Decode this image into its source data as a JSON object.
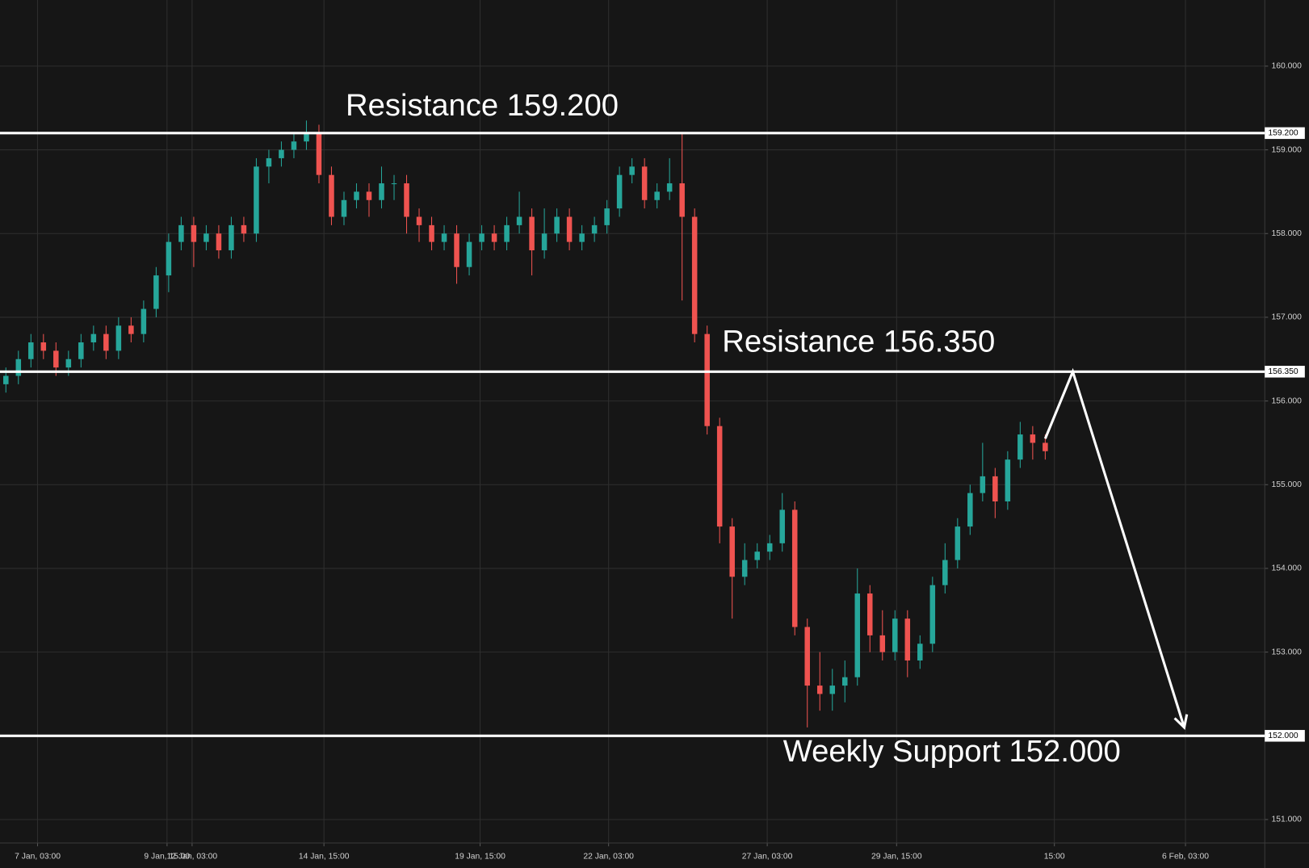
{
  "chart_data": {
    "type": "candlestick",
    "up_color": "#26a69a",
    "down_color": "#ef5350",
    "grid": true,
    "xlim": [
      -0.47,
      100.53
    ],
    "ylim": [
      150.72,
      160.79
    ],
    "xticks": [
      {
        "value": 2.53,
        "label": "7 Jan, 03:00"
      },
      {
        "value": 12.87,
        "label": "9 Jan, 15:00"
      },
      {
        "value": 14.87,
        "label": "12 Jan, 03:00"
      },
      {
        "value": 25.4,
        "label": "14 Jan, 15:00"
      },
      {
        "value": 37.87,
        "label": "19 Jan, 15:00"
      },
      {
        "value": 48.13,
        "label": "22 Jan, 03:00"
      },
      {
        "value": 60.8,
        "label": "27 Jan, 03:00"
      },
      {
        "value": 71.13,
        "label": "29 Jan, 15:00"
      },
      {
        "value": 83.73,
        "label": "15:00"
      },
      {
        "value": 94.2,
        "label": "6 Feb, 03:00"
      }
    ],
    "yticks": [
      {
        "value": 151,
        "label": "151.000"
      },
      {
        "value": 152,
        "label": "152.000"
      },
      {
        "value": 153,
        "label": "153.000"
      },
      {
        "value": 154,
        "label": "154.000"
      },
      {
        "value": 155,
        "label": "155.000"
      },
      {
        "value": 156,
        "label": "156.000"
      },
      {
        "value": 157,
        "label": "157.000"
      },
      {
        "value": 158,
        "label": "158.000"
      },
      {
        "value": 159,
        "label": "159.000"
      },
      {
        "value": 160,
        "label": "160.000"
      }
    ],
    "open": [
      156.2,
      156.3,
      156.5,
      156.7,
      156.6,
      156.4,
      156.5,
      156.7,
      156.8,
      156.6,
      156.9,
      156.8,
      157.1,
      157.5,
      157.9,
      158.1,
      157.9,
      158.0,
      157.8,
      158.1,
      158.0,
      158.8,
      158.9,
      159.0,
      159.1,
      159.2,
      158.7,
      158.2,
      158.4,
      158.5,
      158.4,
      158.6,
      158.6,
      158.2,
      158.1,
      157.9,
      158.0,
      157.6,
      157.9,
      158.0,
      157.9,
      158.1,
      158.2,
      157.8,
      158.0,
      158.2,
      157.9,
      158.0,
      158.1,
      158.3,
      158.7,
      158.8,
      158.4,
      158.5,
      158.6,
      158.2,
      156.8,
      155.7,
      154.5,
      153.9,
      154.1,
      154.2,
      154.3,
      154.7,
      153.3,
      152.6,
      152.5,
      152.6,
      152.7,
      153.7,
      153.2,
      153.0,
      153.4,
      152.9,
      153.1,
      153.8,
      154.1,
      154.5,
      154.9,
      155.1,
      154.8,
      155.3,
      155.6,
      155.5
    ],
    "high": [
      156.4,
      156.6,
      156.8,
      156.8,
      156.7,
      156.6,
      156.8,
      156.9,
      156.9,
      157.0,
      157.0,
      157.2,
      157.6,
      158.0,
      158.2,
      158.2,
      158.1,
      158.1,
      158.2,
      158.2,
      158.9,
      159.0,
      159.1,
      159.2,
      159.35,
      159.3,
      158.8,
      158.5,
      158.6,
      158.6,
      158.8,
      158.7,
      158.7,
      158.3,
      158.2,
      158.1,
      158.1,
      158.0,
      158.1,
      158.1,
      158.2,
      158.5,
      158.3,
      158.3,
      158.3,
      158.3,
      158.1,
      158.2,
      158.4,
      158.8,
      158.9,
      158.9,
      158.6,
      158.9,
      159.2,
      158.3,
      156.9,
      155.8,
      154.6,
      154.3,
      154.3,
      154.4,
      154.9,
      154.8,
      153.4,
      153.0,
      152.8,
      152.9,
      154.0,
      153.8,
      153.5,
      153.5,
      153.5,
      153.2,
      153.9,
      154.3,
      154.6,
      155.0,
      155.5,
      155.2,
      155.4,
      155.75,
      155.7,
      155.6
    ],
    "low": [
      156.1,
      156.2,
      156.4,
      156.5,
      156.3,
      156.3,
      156.4,
      156.6,
      156.5,
      156.5,
      156.7,
      156.7,
      157.0,
      157.3,
      157.8,
      157.6,
      157.8,
      157.7,
      157.7,
      157.9,
      157.9,
      158.6,
      158.8,
      158.9,
      159.0,
      158.6,
      158.1,
      158.1,
      158.3,
      158.2,
      158.3,
      158.4,
      158.0,
      157.9,
      157.8,
      157.8,
      157.4,
      157.5,
      157.8,
      157.8,
      157.8,
      158.0,
      157.5,
      157.7,
      157.9,
      157.8,
      157.8,
      157.9,
      158.0,
      158.2,
      158.6,
      158.3,
      158.3,
      158.4,
      157.2,
      156.7,
      155.6,
      154.3,
      153.4,
      153.8,
      154.0,
      154.1,
      154.2,
      153.2,
      152.1,
      152.3,
      152.3,
      152.4,
      152.6,
      153.0,
      152.9,
      152.9,
      152.7,
      152.8,
      153.0,
      153.7,
      154.0,
      154.4,
      154.8,
      154.6,
      154.7,
      155.2,
      155.3,
      155.3
    ],
    "close": [
      156.3,
      156.5,
      156.7,
      156.6,
      156.4,
      156.5,
      156.7,
      156.8,
      156.6,
      156.9,
      156.8,
      157.1,
      157.5,
      157.9,
      158.1,
      157.9,
      158.0,
      157.8,
      158.1,
      158.0,
      158.8,
      158.9,
      159.0,
      159.1,
      159.2,
      158.7,
      158.2,
      158.4,
      158.5,
      158.4,
      158.6,
      158.6,
      158.2,
      158.1,
      157.9,
      158.0,
      157.6,
      157.9,
      158.0,
      157.9,
      158.1,
      158.2,
      157.8,
      158.0,
      158.2,
      157.9,
      158.0,
      158.1,
      158.3,
      158.7,
      158.8,
      158.4,
      158.5,
      158.6,
      158.2,
      156.8,
      155.7,
      154.5,
      153.9,
      154.1,
      154.2,
      154.3,
      154.7,
      153.3,
      152.6,
      152.5,
      152.6,
      152.7,
      153.7,
      153.2,
      153.0,
      153.4,
      152.9,
      153.1,
      153.8,
      154.1,
      154.5,
      154.9,
      155.1,
      154.8,
      155.3,
      155.6,
      155.5,
      155.4
    ],
    "levels": [
      {
        "value": 159.2,
        "label": "159.200",
        "text": "Resistance 159.200"
      },
      {
        "value": 156.35,
        "label": "156.350",
        "text": "Resistance 156.350"
      },
      {
        "value": 152.0,
        "label": "152.000",
        "text": "Weekly Support 152.000"
      }
    ],
    "projection": {
      "x": [
        83,
        85.2,
        94.1
      ],
      "y": [
        155.55,
        156.35,
        152.1
      ]
    }
  }
}
